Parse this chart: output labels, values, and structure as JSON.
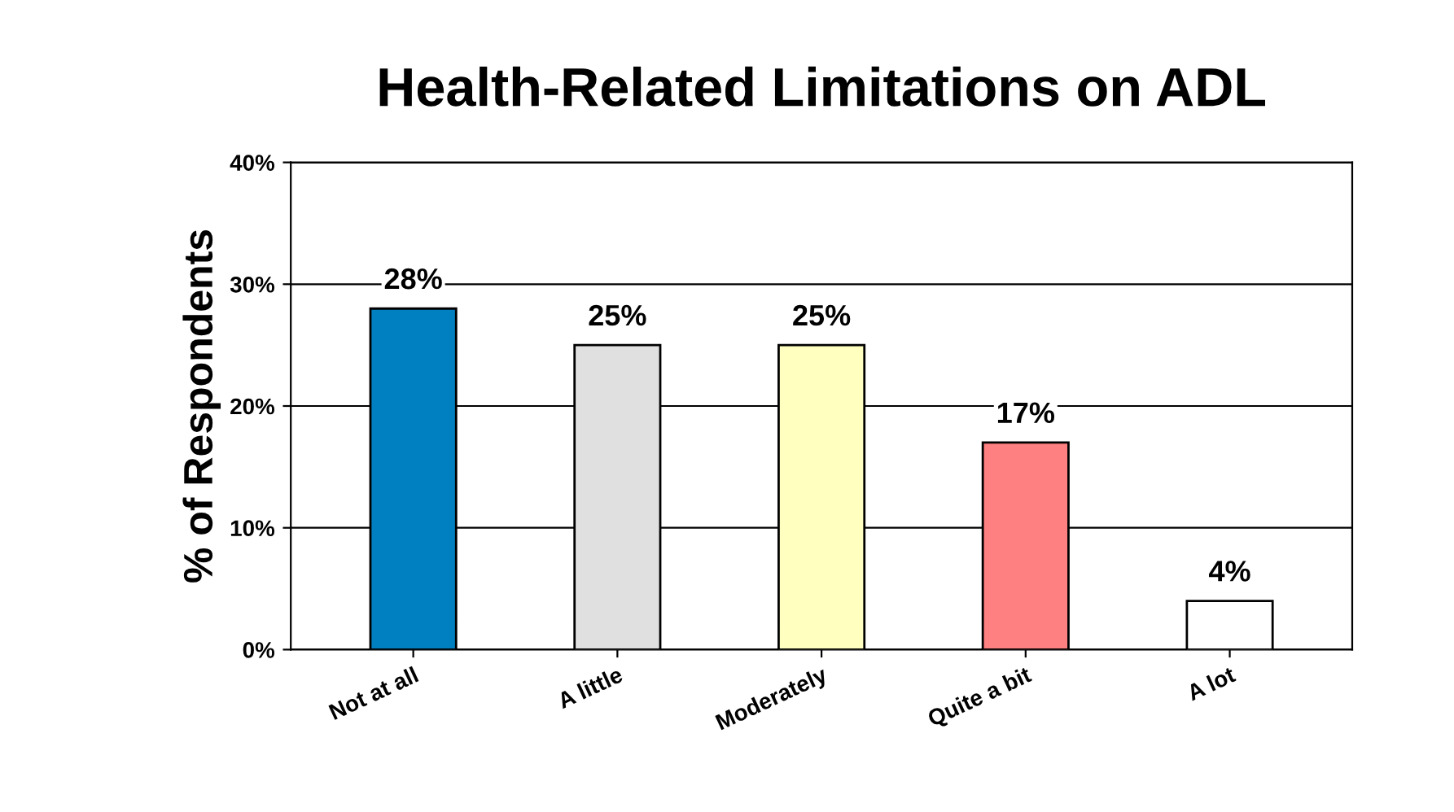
{
  "chart_data": {
    "type": "bar",
    "title": "Health-Related Limitations on ADL",
    "ylabel": "% of Respondents",
    "categories": [
      "Not at all",
      "A little",
      "Moderately",
      "Quite a bit",
      "A lot"
    ],
    "values": [
      28,
      25,
      25,
      17,
      4
    ],
    "colors": [
      "#0080c0",
      "#e0e0e0",
      "#ffffc0",
      "#ff8080",
      "#ffffff"
    ],
    "value_labels": [
      "28%",
      "25%",
      "25%",
      "17%",
      "4%"
    ],
    "ylim": [
      0,
      40
    ],
    "yticks": [
      {
        "value": 0,
        "label": "0%"
      },
      {
        "value": 10,
        "label": "10%"
      },
      {
        "value": 20,
        "label": "20%"
      },
      {
        "value": 30,
        "label": "30%"
      },
      {
        "value": 40,
        "label": "40%"
      }
    ],
    "grid": "y"
  }
}
